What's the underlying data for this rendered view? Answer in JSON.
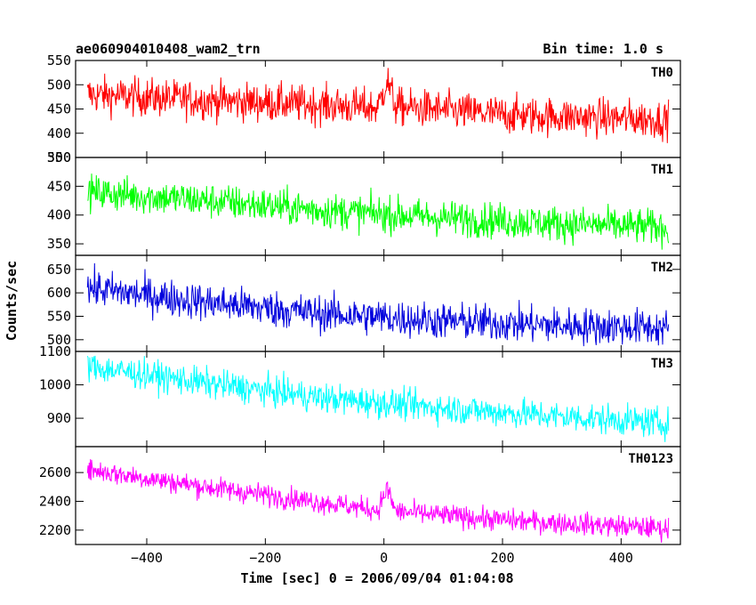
{
  "chart_data": {
    "type": "line",
    "title_left": "ae060904010408_wam2_trn",
    "title_right": "Bin time: 1.0 s",
    "xlabel": "Time [sec] 0 = 2006/09/04 01:04:08",
    "ylabel": "Counts/sec",
    "xlim": [
      -520,
      500
    ],
    "x_range": [
      -500,
      480
    ],
    "x_ticks": [
      -400,
      -200,
      0,
      200,
      400
    ],
    "x_tick_labels": [
      "−400",
      "−200",
      "0",
      "200",
      "400"
    ],
    "panels": [
      {
        "name": "TH0",
        "color": "#ff0000",
        "ylim": [
          350,
          550
        ],
        "y_ticks": [
          350,
          400,
          450,
          500,
          550
        ],
        "y_tick_labels": [
          "350",
          "400",
          "450",
          "500",
          "550"
        ],
        "trend": [
          [
            -500,
            480
          ],
          [
            -300,
            468
          ],
          [
            -100,
            458
          ],
          [
            -10,
            452
          ],
          [
            5,
            510
          ],
          [
            20,
            455
          ],
          [
            200,
            438
          ],
          [
            480,
            428
          ]
        ],
        "noise": 28
      },
      {
        "name": "TH1",
        "color": "#00ff00",
        "ylim": [
          330,
          500
        ],
        "y_ticks": [
          350,
          400,
          450,
          500
        ],
        "y_tick_labels": [
          "350",
          "400",
          "450",
          "500"
        ],
        "trend": [
          [
            -500,
            440
          ],
          [
            -300,
            425
          ],
          [
            -100,
            408
          ],
          [
            100,
            395
          ],
          [
            300,
            385
          ],
          [
            480,
            378
          ]
        ],
        "noise": 22
      },
      {
        "name": "TH2",
        "color": "#0000dd",
        "ylim": [
          475,
          680
        ],
        "y_ticks": [
          500,
          550,
          600,
          650
        ],
        "y_tick_labels": [
          "500",
          "550",
          "600",
          "650"
        ],
        "trend": [
          [
            -500,
            610
          ],
          [
            -300,
            580
          ],
          [
            -100,
            555
          ],
          [
            100,
            540
          ],
          [
            300,
            530
          ],
          [
            480,
            525
          ]
        ],
        "noise": 28
      },
      {
        "name": "TH3",
        "color": "#00ffff",
        "ylim": [
          815,
          1100
        ],
        "y_ticks": [
          900,
          1000,
          1100
        ],
        "y_tick_labels": [
          "900",
          "1000",
          "1100"
        ],
        "trend": [
          [
            -500,
            1055
          ],
          [
            -300,
            1005
          ],
          [
            -100,
            960
          ],
          [
            100,
            930
          ],
          [
            300,
            905
          ],
          [
            480,
            885
          ]
        ],
        "noise": 32
      },
      {
        "name": "TH0123",
        "color": "#ff00ff",
        "ylim": [
          2100,
          2780
        ],
        "y_ticks": [
          2200,
          2400,
          2600
        ],
        "y_tick_labels": [
          "2200",
          "2400",
          "2600"
        ],
        "trend": [
          [
            -500,
            2620
          ],
          [
            -300,
            2500
          ],
          [
            -100,
            2390
          ],
          [
            -10,
            2340
          ],
          [
            5,
            2490
          ],
          [
            20,
            2330
          ],
          [
            200,
            2270
          ],
          [
            480,
            2210
          ]
        ],
        "noise": 55
      }
    ]
  }
}
